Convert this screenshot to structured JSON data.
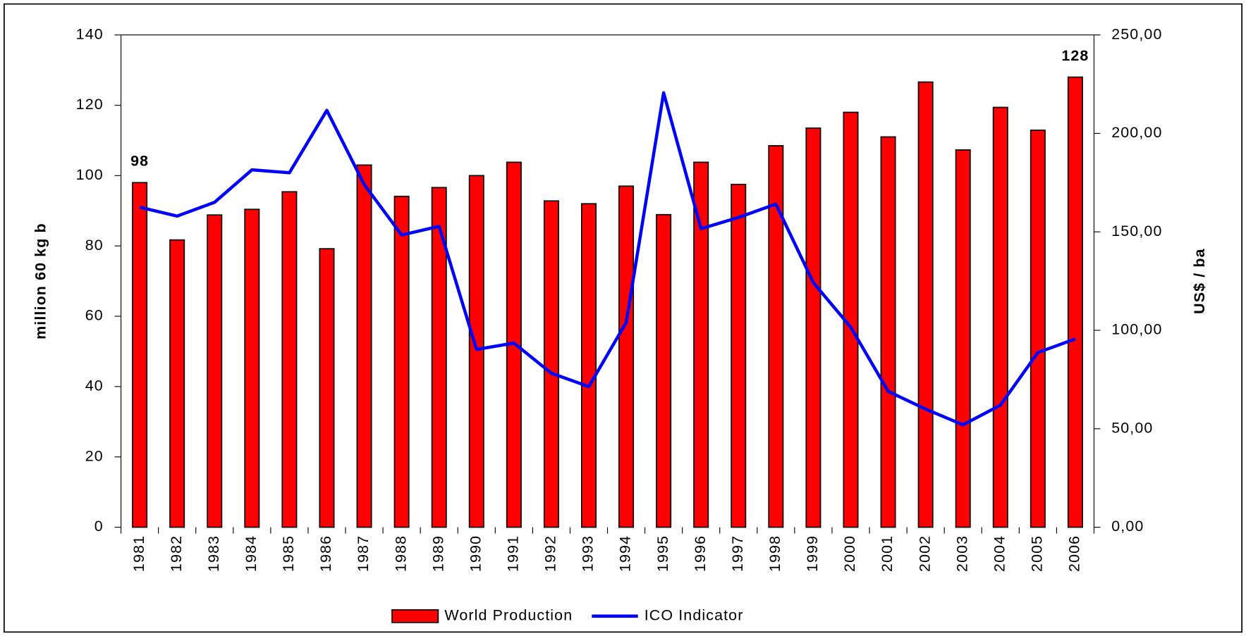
{
  "chart_data": {
    "type": "bar",
    "y_label": "million 60 kg b",
    "y2_label": "US$ / ba",
    "categories": [
      "1981",
      "1982",
      "1983",
      "1984",
      "1985",
      "1986",
      "1987",
      "1988",
      "1989",
      "1990",
      "1991",
      "1992",
      "1993",
      "1994",
      "1995",
      "1996",
      "1997",
      "1998",
      "1999",
      "2000",
      "2001",
      "2002",
      "2003",
      "2004",
      "2005",
      "2006"
    ],
    "series": [
      {
        "name": "World Production",
        "type": "bar",
        "color": "#ff0000",
        "values": [
          98,
          81.7,
          88.8,
          90.4,
          95.4,
          79.2,
          103,
          94.1,
          96.6,
          100,
          103.8,
          92.8,
          92,
          97,
          88.9,
          103.8,
          97.5,
          108.5,
          113.5,
          118,
          111,
          126.6,
          107.3,
          119.4,
          112.9,
          128
        ],
        "value_labels": [
          "98",
          null,
          null,
          null,
          null,
          null,
          null,
          null,
          null,
          null,
          null,
          null,
          null,
          null,
          null,
          null,
          null,
          null,
          null,
          null,
          null,
          null,
          null,
          null,
          null,
          "128"
        ]
      },
      {
        "name": "ICO Indicator",
        "type": "line",
        "axis": "y2",
        "color": "#0000ff",
        "values": [
          162.5,
          158,
          165,
          181.5,
          180,
          211.7,
          174,
          148.4,
          152.8,
          90.3,
          93.5,
          78.2,
          71.4,
          104,
          220.6,
          151.6,
          157.3,
          164.1,
          124.2,
          101.6,
          69,
          60,
          52,
          62,
          88.7,
          95.6
        ]
      }
    ],
    "ylim": [
      0,
      140
    ],
    "yticks": [
      0,
      20,
      40,
      60,
      80,
      100,
      120,
      140
    ],
    "y2lim": [
      0,
      250
    ],
    "y2ticks": [
      {
        "value": 0,
        "label": "0,00"
      },
      {
        "value": 50,
        "label": "50,00"
      },
      {
        "value": 100,
        "label": "100,00"
      },
      {
        "value": 150,
        "label": "150,00"
      },
      {
        "value": 200,
        "label": "200,00"
      },
      {
        "value": 250,
        "label": "250,00"
      }
    ]
  }
}
